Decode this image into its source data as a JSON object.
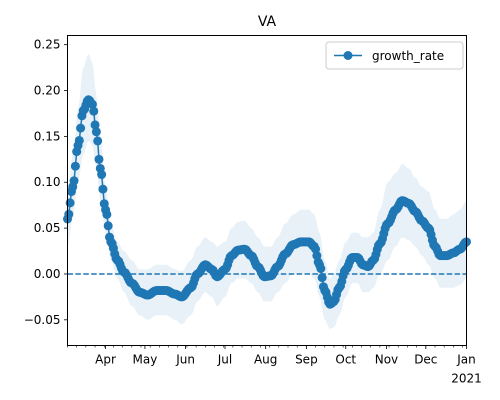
{
  "chart_data": {
    "type": "line",
    "title": "VA",
    "xlabel": "",
    "ylabel": "",
    "x_start": "2020-03-03",
    "x_end": "2021-01-01",
    "xlim": [
      "2020-03-03",
      "2021-01-01"
    ],
    "ylim": [
      -0.078,
      0.26
    ],
    "yticks": [
      -0.05,
      0.0,
      0.05,
      0.1,
      0.15,
      0.2,
      0.25
    ],
    "ytick_labels": [
      "−0.05",
      "0.00",
      "0.05",
      "0.10",
      "0.15",
      "0.20",
      "0.25"
    ],
    "xticks": [
      {
        "date": "2020-04-01",
        "label": "Apr"
      },
      {
        "date": "2020-05-01",
        "label": "May"
      },
      {
        "date": "2020-06-01",
        "label": "Jun"
      },
      {
        "date": "2020-07-01",
        "label": "Jul"
      },
      {
        "date": "2020-08-01",
        "label": "Aug"
      },
      {
        "date": "2020-09-01",
        "label": "Sep"
      },
      {
        "date": "2020-10-01",
        "label": "Oct"
      },
      {
        "date": "2020-11-01",
        "label": "Nov"
      },
      {
        "date": "2020-12-01",
        "label": "Dec"
      },
      {
        "date": "2021-01-01",
        "label": "Jan",
        "sublabel": "2021"
      }
    ],
    "legend": {
      "position": "top-right",
      "entries": [
        "growth_rate"
      ]
    },
    "grid": false,
    "reference_line": {
      "y": 0.0,
      "style": "dashed"
    },
    "colors": {
      "series": "#1f77b4",
      "band": "#1f77b4",
      "reference": "#1f77b4"
    },
    "series": [
      {
        "name": "growth_rate",
        "knots": [
          {
            "x": "2020-03-03",
            "y": 0.06,
            "lo": 0.03,
            "hi": 0.09
          },
          {
            "x": "2020-03-07",
            "y": 0.095,
            "lo": 0.06,
            "hi": 0.13
          },
          {
            "x": "2020-03-11",
            "y": 0.14,
            "lo": 0.1,
            "hi": 0.18
          },
          {
            "x": "2020-03-15",
            "y": 0.178,
            "lo": 0.13,
            "hi": 0.225
          },
          {
            "x": "2020-03-19",
            "y": 0.19,
            "lo": 0.145,
            "hi": 0.24
          },
          {
            "x": "2020-03-22",
            "y": 0.185,
            "lo": 0.14,
            "hi": 0.23
          },
          {
            "x": "2020-03-25",
            "y": 0.155,
            "lo": 0.115,
            "hi": 0.195
          },
          {
            "x": "2020-03-28",
            "y": 0.115,
            "lo": 0.08,
            "hi": 0.15
          },
          {
            "x": "2020-04-01",
            "y": 0.07,
            "lo": 0.045,
            "hi": 0.095
          },
          {
            "x": "2020-04-05",
            "y": 0.035,
            "lo": 0.015,
            "hi": 0.055
          },
          {
            "x": "2020-04-10",
            "y": 0.015,
            "lo": -0.005,
            "hi": 0.035
          },
          {
            "x": "2020-04-15",
            "y": 0.002,
            "lo": -0.02,
            "hi": 0.025
          },
          {
            "x": "2020-04-21",
            "y": -0.01,
            "lo": -0.035,
            "hi": 0.015
          },
          {
            "x": "2020-04-27",
            "y": -0.02,
            "lo": -0.045,
            "hi": 0.005
          },
          {
            "x": "2020-05-03",
            "y": -0.023,
            "lo": -0.05,
            "hi": 0.005
          },
          {
            "x": "2020-05-10",
            "y": -0.018,
            "lo": -0.045,
            "hi": 0.01
          },
          {
            "x": "2020-05-17",
            "y": -0.018,
            "lo": -0.045,
            "hi": 0.01
          },
          {
            "x": "2020-05-24",
            "y": -0.022,
            "lo": -0.05,
            "hi": 0.005
          },
          {
            "x": "2020-05-29",
            "y": -0.025,
            "lo": -0.055,
            "hi": 0.003
          },
          {
            "x": "2020-06-05",
            "y": -0.015,
            "lo": -0.045,
            "hi": 0.015
          },
          {
            "x": "2020-06-10",
            "y": 0.0,
            "lo": -0.03,
            "hi": 0.03
          },
          {
            "x": "2020-06-16",
            "y": 0.01,
            "lo": -0.02,
            "hi": 0.04
          },
          {
            "x": "2020-06-21",
            "y": 0.005,
            "lo": -0.025,
            "hi": 0.035
          },
          {
            "x": "2020-06-25",
            "y": -0.003,
            "lo": -0.035,
            "hi": 0.03
          },
          {
            "x": "2020-07-01",
            "y": 0.005,
            "lo": -0.025,
            "hi": 0.035
          },
          {
            "x": "2020-07-06",
            "y": 0.02,
            "lo": -0.01,
            "hi": 0.05
          },
          {
            "x": "2020-07-11",
            "y": 0.026,
            "lo": -0.005,
            "hi": 0.057
          },
          {
            "x": "2020-07-16",
            "y": 0.027,
            "lo": -0.005,
            "hi": 0.058
          },
          {
            "x": "2020-07-21",
            "y": 0.02,
            "lo": -0.01,
            "hi": 0.05
          },
          {
            "x": "2020-07-26",
            "y": 0.008,
            "lo": -0.02,
            "hi": 0.04
          },
          {
            "x": "2020-07-31",
            "y": -0.003,
            "lo": -0.03,
            "hi": 0.03
          },
          {
            "x": "2020-08-05",
            "y": -0.002,
            "lo": -0.03,
            "hi": 0.03
          },
          {
            "x": "2020-08-10",
            "y": 0.008,
            "lo": -0.02,
            "hi": 0.04
          },
          {
            "x": "2020-08-16",
            "y": 0.022,
            "lo": -0.01,
            "hi": 0.055
          },
          {
            "x": "2020-08-22",
            "y": 0.032,
            "lo": 0.0,
            "hi": 0.065
          },
          {
            "x": "2020-08-28",
            "y": 0.035,
            "lo": 0.0,
            "hi": 0.07
          },
          {
            "x": "2020-09-03",
            "y": 0.035,
            "lo": 0.0,
            "hi": 0.07
          },
          {
            "x": "2020-09-07",
            "y": 0.03,
            "lo": -0.005,
            "hi": 0.065
          },
          {
            "x": "2020-09-11",
            "y": 0.01,
            "lo": -0.025,
            "hi": 0.045
          },
          {
            "x": "2020-09-15",
            "y": -0.018,
            "lo": -0.05,
            "hi": 0.015
          },
          {
            "x": "2020-09-19",
            "y": -0.033,
            "lo": -0.06,
            "hi": -0.005
          },
          {
            "x": "2020-09-22",
            "y": -0.03,
            "lo": -0.058,
            "hi": 0.0
          },
          {
            "x": "2020-09-26",
            "y": -0.015,
            "lo": -0.045,
            "hi": 0.015
          },
          {
            "x": "2020-10-01",
            "y": 0.005,
            "lo": -0.025,
            "hi": 0.035
          },
          {
            "x": "2020-10-06",
            "y": 0.018,
            "lo": -0.01,
            "hi": 0.045
          },
          {
            "x": "2020-10-10",
            "y": 0.018,
            "lo": -0.01,
            "hi": 0.045
          },
          {
            "x": "2020-10-14",
            "y": 0.01,
            "lo": -0.02,
            "hi": 0.04
          },
          {
            "x": "2020-10-18",
            "y": 0.008,
            "lo": -0.02,
            "hi": 0.04
          },
          {
            "x": "2020-10-22",
            "y": 0.015,
            "lo": -0.015,
            "hi": 0.045
          },
          {
            "x": "2020-10-27",
            "y": 0.033,
            "lo": 0.0,
            "hi": 0.07
          },
          {
            "x": "2020-11-02",
            "y": 0.055,
            "lo": 0.015,
            "hi": 0.1
          },
          {
            "x": "2020-11-08",
            "y": 0.07,
            "lo": 0.03,
            "hi": 0.11
          },
          {
            "x": "2020-11-13",
            "y": 0.08,
            "lo": 0.04,
            "hi": 0.12
          },
          {
            "x": "2020-11-18",
            "y": 0.077,
            "lo": 0.037,
            "hi": 0.115
          },
          {
            "x": "2020-11-23",
            "y": 0.068,
            "lo": 0.03,
            "hi": 0.105
          },
          {
            "x": "2020-11-28",
            "y": 0.058,
            "lo": 0.02,
            "hi": 0.095
          },
          {
            "x": "2020-12-03",
            "y": 0.05,
            "lo": 0.01,
            "hi": 0.09
          },
          {
            "x": "2020-12-08",
            "y": 0.03,
            "lo": -0.005,
            "hi": 0.07
          },
          {
            "x": "2020-12-12",
            "y": 0.02,
            "lo": -0.015,
            "hi": 0.06
          },
          {
            "x": "2020-12-17",
            "y": 0.02,
            "lo": -0.015,
            "hi": 0.06
          },
          {
            "x": "2020-12-22",
            "y": 0.023,
            "lo": -0.015,
            "hi": 0.065
          },
          {
            "x": "2020-12-27",
            "y": 0.027,
            "lo": -0.012,
            "hi": 0.07
          },
          {
            "x": "2021-01-01",
            "y": 0.035,
            "lo": -0.005,
            "hi": 0.08
          }
        ]
      }
    ]
  }
}
